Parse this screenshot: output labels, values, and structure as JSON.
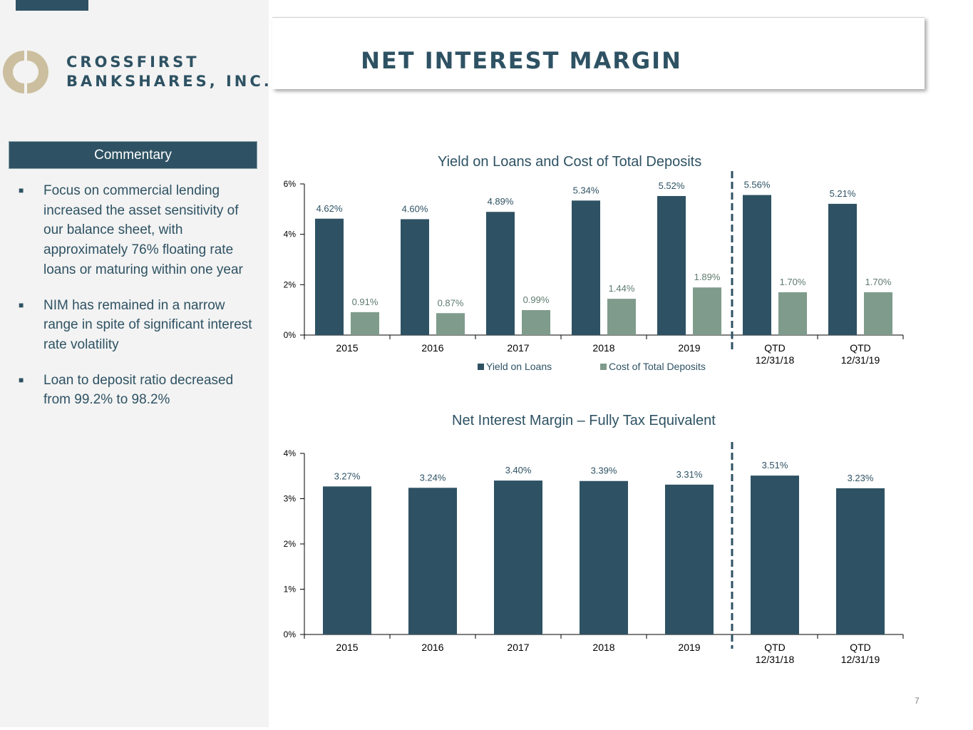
{
  "colors": {
    "navy": "#2e5263",
    "sage": "#7f9b8c",
    "logo_tan": "#cbbf9f",
    "sidebar_bg": "#f3f3f3"
  },
  "logo": {
    "line1": "CROSSFIRST",
    "line2": "BANKSHARES, INC."
  },
  "page_title": "NET INTEREST MARGIN",
  "commentary": {
    "header": "Commentary",
    "bullets": [
      "Focus on commercial lending increased the asset sensitivity of our balance sheet, with approximately 76% floating rate loans or maturing within one year",
      "NIM has remained in a narrow range in spite of significant interest rate volatility",
      "Loan to deposit ratio decreased from 99.2% to 98.2%"
    ]
  },
  "page_number": "7",
  "chart_data": [
    {
      "type": "bar",
      "title": "Yield on Loans and Cost of Total Deposits",
      "categories": [
        [
          "2015"
        ],
        [
          "2016"
        ],
        [
          "2017"
        ],
        [
          "2018"
        ],
        [
          "2019"
        ],
        [
          "QTD",
          "12/31/18"
        ],
        [
          "QTD",
          "12/31/19"
        ]
      ],
      "series": [
        {
          "name": "Yield on Loans",
          "values": [
            4.62,
            4.6,
            4.89,
            5.34,
            5.52,
            5.56,
            5.21
          ],
          "labels": [
            "4.62%",
            "4.60%",
            "4.89%",
            "5.34%",
            "5.52%",
            "5.56%",
            "5.21%"
          ],
          "color": "#2e5263"
        },
        {
          "name": "Cost of Total Deposits",
          "values": [
            0.91,
            0.87,
            0.99,
            1.44,
            1.89,
            1.7,
            1.7
          ],
          "labels": [
            "0.91%",
            "0.87%",
            "0.99%",
            "1.44%",
            "1.89%",
            "1.70%",
            "1.70%"
          ],
          "color": "#7f9b8c"
        }
      ],
      "ylim": [
        0,
        6
      ],
      "yticks": [
        "0%",
        "2%",
        "4%",
        "6%"
      ],
      "divider_after_index": 4,
      "legend": "bottom"
    },
    {
      "type": "bar",
      "title": "Net Interest Margin – Fully Tax Equivalent",
      "categories": [
        [
          "2015"
        ],
        [
          "2016"
        ],
        [
          "2017"
        ],
        [
          "2018"
        ],
        [
          "2019"
        ],
        [
          "QTD",
          "12/31/18"
        ],
        [
          "QTD",
          "12/31/19"
        ]
      ],
      "series": [
        {
          "values": [
            3.27,
            3.24,
            3.4,
            3.39,
            3.31,
            3.51,
            3.23
          ],
          "labels": [
            "3.27%",
            "3.24%",
            "3.40%",
            "3.39%",
            "3.31%",
            "3.51%",
            "3.23%"
          ],
          "color": "#2e5263"
        }
      ],
      "ylim": [
        0,
        4
      ],
      "yticks": [
        "0%",
        "1%",
        "2%",
        "3%",
        "4%"
      ],
      "divider_after_index": 4
    }
  ]
}
